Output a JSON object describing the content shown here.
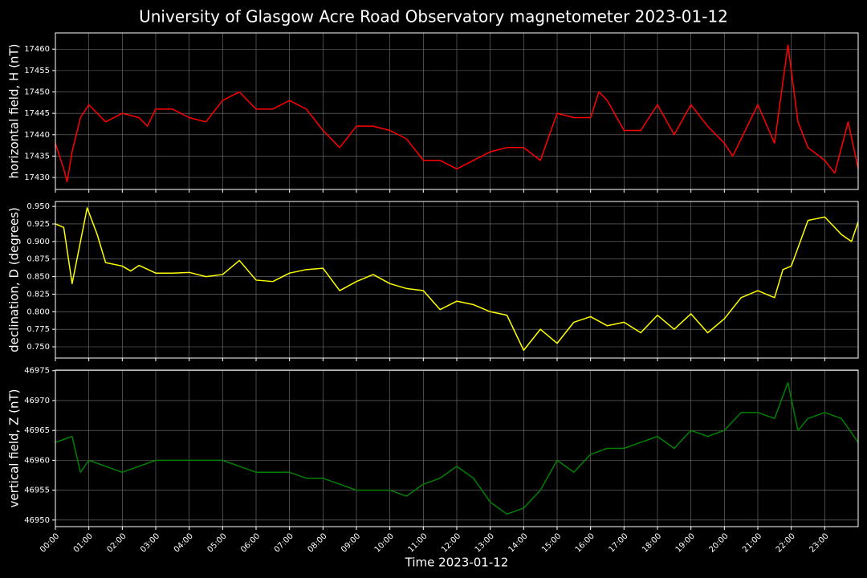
{
  "chart_data": [
    {
      "type": "line",
      "title": "University of Glasgow Acre Road Observatory magnetometer 2023-01-12",
      "ylabel": "horizontal field, H (nT)",
      "x": [
        0,
        0.25,
        0.35,
        0.5,
        0.75,
        1,
        1.5,
        2,
        2.5,
        2.75,
        3,
        3.5,
        4,
        4.5,
        5,
        5.5,
        6,
        6.5,
        7,
        7.5,
        8,
        8.5,
        9,
        9.5,
        10,
        10.5,
        11,
        11.5,
        12,
        12.5,
        13,
        13.5,
        14,
        14.5,
        15,
        15.5,
        16,
        16.25,
        16.5,
        17,
        17.5,
        18,
        18.5,
        19,
        19.5,
        20,
        20.25,
        20.75,
        21,
        21.5,
        21.9,
        22.2,
        22.5,
        23,
        23.3,
        23.7,
        24
      ],
      "series": [
        {
          "color": "#ff0000",
          "values": [
            17438,
            17432,
            17429,
            17436,
            17444,
            17447,
            17443,
            17445,
            17444,
            17442,
            17446,
            17446,
            17444,
            17443,
            17448,
            17450,
            17446,
            17446,
            17448,
            17446,
            17441,
            17437,
            17442,
            17442,
            17441,
            17439,
            17434,
            17434,
            17432,
            17434,
            17436,
            17437,
            17437,
            17434,
            17445,
            17444,
            17444,
            17450,
            17448,
            17441,
            17441,
            17447,
            17440,
            17447,
            17442,
            17438,
            17435,
            17443,
            17447,
            17438,
            17461,
            17443,
            17437,
            17434,
            17431,
            17443,
            17432
          ]
        }
      ],
      "xlim": [
        0,
        24
      ],
      "ylim": [
        17427.2,
        17463.8
      ],
      "yticks": [
        17430,
        17435,
        17440,
        17445,
        17450,
        17455,
        17460
      ],
      "grid": true
    },
    {
      "type": "line",
      "ylabel": "declination, D (degrees)",
      "x": [
        0,
        0.25,
        0.5,
        0.75,
        0.95,
        1.25,
        1.5,
        2,
        2.25,
        2.5,
        3,
        3.5,
        4,
        4.5,
        5,
        5.5,
        6,
        6.5,
        7,
        7.5,
        8,
        8.5,
        9,
        9.5,
        10,
        10.5,
        11,
        11.5,
        12,
        12.5,
        13,
        13.5,
        14,
        14.5,
        15,
        15.5,
        16,
        16.5,
        17,
        17.5,
        18,
        18.5,
        19,
        19.5,
        20,
        20.5,
        21,
        21.5,
        21.75,
        22,
        22.5,
        23,
        23.5,
        23.8,
        24
      ],
      "series": [
        {
          "color": "#ffff00",
          "values": [
            0.925,
            0.92,
            0.84,
            0.9,
            0.948,
            0.91,
            0.87,
            0.865,
            0.858,
            0.866,
            0.855,
            0.855,
            0.856,
            0.85,
            0.853,
            0.873,
            0.845,
            0.843,
            0.855,
            0.86,
            0.862,
            0.83,
            0.843,
            0.853,
            0.84,
            0.833,
            0.83,
            0.803,
            0.815,
            0.81,
            0.8,
            0.795,
            0.745,
            0.775,
            0.755,
            0.785,
            0.793,
            0.78,
            0.785,
            0.77,
            0.795,
            0.775,
            0.797,
            0.77,
            0.79,
            0.82,
            0.83,
            0.82,
            0.86,
            0.865,
            0.93,
            0.935,
            0.91,
            0.9,
            0.928
          ]
        }
      ],
      "xlim": [
        0,
        24
      ],
      "ylim": [
        0.734,
        0.957
      ],
      "yticks": [
        {
          "value": 0.75,
          "label": "0.750"
        },
        {
          "value": 0.775,
          "label": "0.775"
        },
        {
          "value": 0.8,
          "label": "0.800"
        },
        {
          "value": 0.825,
          "label": "0.825"
        },
        {
          "value": 0.85,
          "label": "0.850"
        },
        {
          "value": 0.875,
          "label": "0.875"
        },
        {
          "value": 0.9,
          "label": "0.900"
        },
        {
          "value": 0.925,
          "label": "0.925"
        },
        {
          "value": 0.95,
          "label": "0.950"
        }
      ],
      "grid": true
    },
    {
      "type": "line",
      "ylabel": "vertical field, Z (nT)",
      "xlabel": "Time 2023-01-12",
      "x": [
        0,
        0.5,
        0.75,
        1,
        1.5,
        2,
        2.5,
        3,
        3.5,
        4,
        4.5,
        5,
        5.5,
        6,
        6.5,
        7,
        7.5,
        8,
        8.5,
        9,
        9.5,
        10,
        10.5,
        11,
        11.5,
        12,
        12.5,
        13,
        13.5,
        14,
        14.5,
        15,
        15.5,
        16,
        16.5,
        17,
        17.5,
        18,
        18.5,
        19,
        19.5,
        20,
        20.5,
        21,
        21.5,
        21.9,
        22.2,
        22.5,
        23,
        23.5,
        24
      ],
      "series": [
        {
          "color": "#008000",
          "values": [
            46963,
            46964,
            46958,
            46960,
            46959,
            46958,
            46959,
            46960,
            46960,
            46960,
            46960,
            46960,
            46959,
            46958,
            46958,
            46958,
            46957,
            46957,
            46956,
            46955,
            46955,
            46955,
            46954,
            46956,
            46957,
            46959,
            46957,
            46953,
            46951,
            46952,
            46955,
            46960,
            46958,
            46961,
            46962,
            46962,
            46963,
            46964,
            46962,
            46965,
            46964,
            46965,
            46968,
            46968,
            46967,
            46973,
            46965,
            46967,
            46968,
            46967,
            46963
          ]
        }
      ],
      "xlim": [
        0,
        24
      ],
      "ylim": [
        46948.9,
        46975.1
      ],
      "yticks": [
        46950,
        46955,
        46960,
        46965,
        46970,
        46975
      ],
      "xticks": [
        {
          "value": 0,
          "label": "00:00"
        },
        {
          "value": 1,
          "label": "01:00"
        },
        {
          "value": 2,
          "label": "02:00"
        },
        {
          "value": 3,
          "label": "03:00"
        },
        {
          "value": 4,
          "label": "04:00"
        },
        {
          "value": 5,
          "label": "05:00"
        },
        {
          "value": 6,
          "label": "06:00"
        },
        {
          "value": 7,
          "label": "07:00"
        },
        {
          "value": 8,
          "label": "08:00"
        },
        {
          "value": 9,
          "label": "09:00"
        },
        {
          "value": 10,
          "label": "10:00"
        },
        {
          "value": 11,
          "label": "11:00"
        },
        {
          "value": 12,
          "label": "12:00"
        },
        {
          "value": 13,
          "label": "13:00"
        },
        {
          "value": 14,
          "label": "14:00"
        },
        {
          "value": 15,
          "label": "15:00"
        },
        {
          "value": 16,
          "label": "16:00"
        },
        {
          "value": 17,
          "label": "17:00"
        },
        {
          "value": 18,
          "label": "18:00"
        },
        {
          "value": 19,
          "label": "19:00"
        },
        {
          "value": 20,
          "label": "20:00"
        },
        {
          "value": 21,
          "label": "21:00"
        },
        {
          "value": 22,
          "label": "22:00"
        },
        {
          "value": 23,
          "label": "23:00"
        }
      ],
      "grid": true
    }
  ]
}
